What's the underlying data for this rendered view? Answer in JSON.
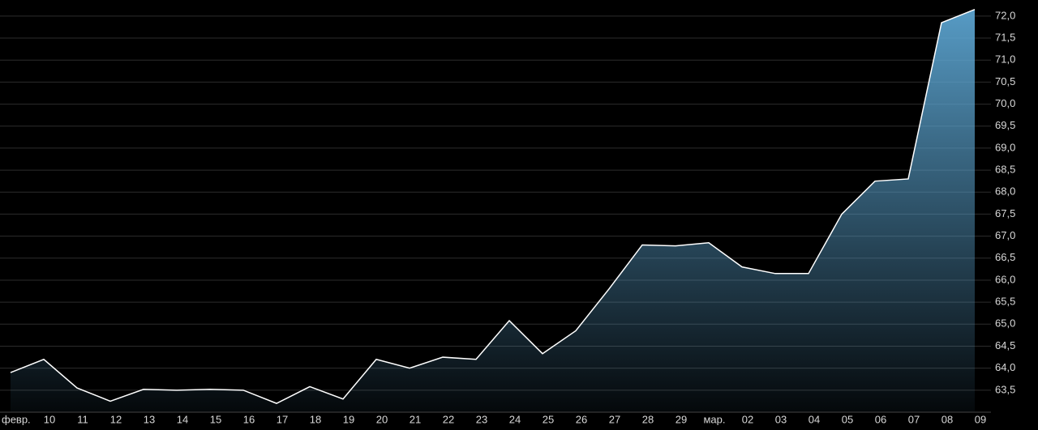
{
  "chart_data": {
    "type": "line",
    "annotations": [
      "февр."
    ],
    "categories": [
      null,
      "10",
      "11",
      "12",
      "13",
      "14",
      "15",
      "16",
      "17",
      "18",
      "19",
      "20",
      "21",
      "22",
      "23",
      "24",
      "25",
      "26",
      "27",
      "28",
      "29",
      "мар.",
      "02",
      "03",
      "04",
      "05",
      "06",
      "07",
      "08",
      "09"
    ],
    "values": [
      63.9,
      64.2,
      63.55,
      63.25,
      63.52,
      63.5,
      63.52,
      63.5,
      63.2,
      63.58,
      63.3,
      64.2,
      64.0,
      64.25,
      64.2,
      65.08,
      64.33,
      64.85,
      65.8,
      66.8,
      66.78,
      66.85,
      66.3,
      66.15,
      66.15,
      67.5,
      68.25,
      68.3,
      71.85,
      72.15
    ],
    "color": "#ffffff",
    "fill": "#5ba3cf",
    "ylim": [
      63.0,
      72.2
    ],
    "yticks": [
      {
        "value": 63.5,
        "label": "63,5"
      },
      {
        "value": 64.0,
        "label": "64,0"
      },
      {
        "value": 64.5,
        "label": "64,5"
      },
      {
        "value": 65.0,
        "label": "65,0"
      },
      {
        "value": 65.5,
        "label": "65,5"
      },
      {
        "value": 66.0,
        "label": "66,0"
      },
      {
        "value": 66.5,
        "label": "66,5"
      },
      {
        "value": 67.0,
        "label": "67,0"
      },
      {
        "value": 67.5,
        "label": "67,5"
      },
      {
        "value": 68.0,
        "label": "68,0"
      },
      {
        "value": 68.5,
        "label": "68,5"
      },
      {
        "value": 69.0,
        "label": "69,0"
      },
      {
        "value": 69.5,
        "label": "69,5"
      },
      {
        "value": 70.0,
        "label": "70,0"
      },
      {
        "value": 70.5,
        "label": "70,5"
      },
      {
        "value": 71.0,
        "label": "71,0"
      },
      {
        "value": 71.5,
        "label": "71,5"
      },
      {
        "value": 72.0,
        "label": "72,0"
      }
    ],
    "grid": true
  }
}
